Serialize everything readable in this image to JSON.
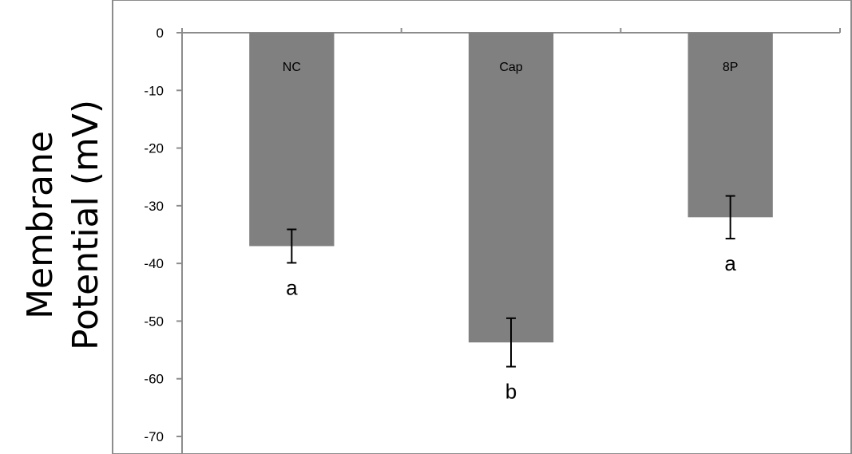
{
  "chart_data": {
    "type": "bar",
    "title": "",
    "xlabel": "",
    "ylabel": "Membrane Potential (mV)",
    "ylabel_lines": [
      "Membrane",
      "Potential (mV)"
    ],
    "categories": [
      "NC",
      "Cap",
      "8P"
    ],
    "values": [
      -37,
      -53.7,
      -32
    ],
    "error": [
      2.9,
      4.2,
      3.7
    ],
    "significance": [
      "a",
      "b",
      "a"
    ],
    "ylim": [
      -70,
      0
    ],
    "yticks": [
      0,
      -10,
      -20,
      -30,
      -40,
      -50,
      -60,
      -70
    ],
    "grid": false,
    "legend": "none",
    "bar_color": "#808080",
    "axis_color": "#8c8c8c"
  }
}
